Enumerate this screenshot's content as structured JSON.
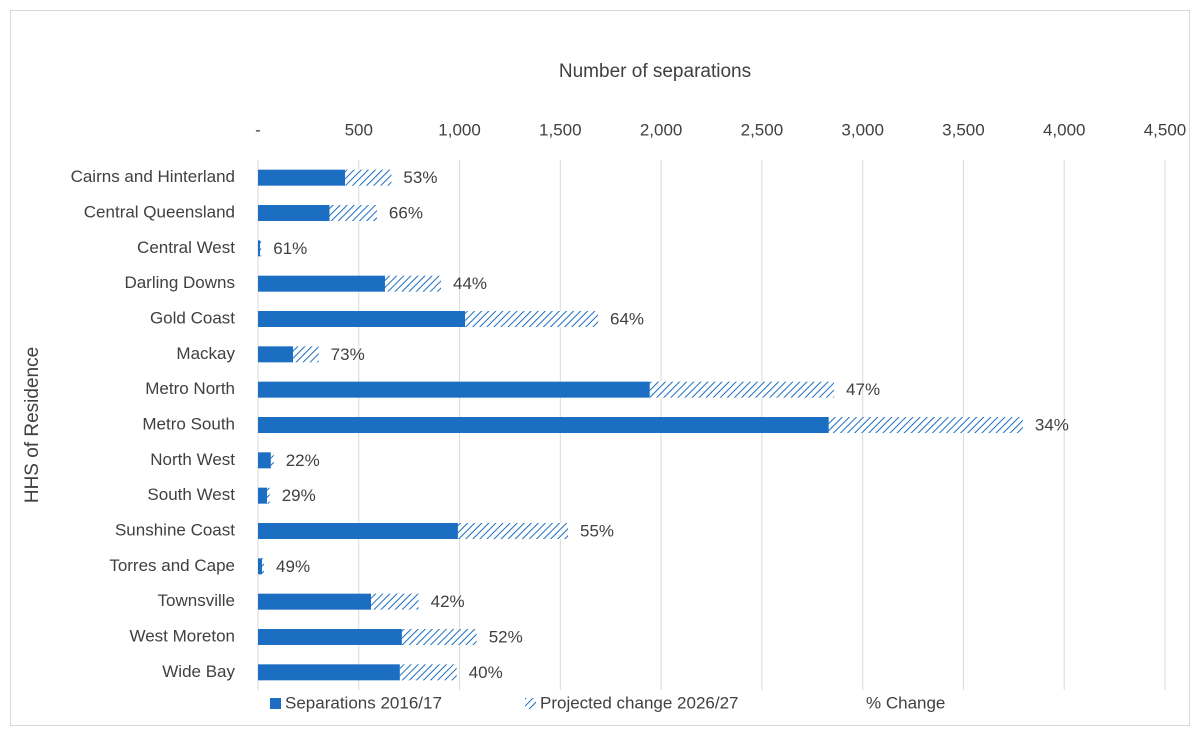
{
  "chart_data": {
    "type": "stacked_barh",
    "x_label": "Number of separations",
    "y_label": "HHS of Residence",
    "categories": [
      "Cairns and Hinterland",
      "Central Queensland",
      "Central West",
      "Darling Downs",
      "Gold Coast",
      "Mackay",
      "Metro North",
      "Metro South",
      "North West",
      "South West",
      "Sunshine Coast",
      "Torres and Cape",
      "Townsville",
      "West Moreton",
      "Wide Bay"
    ],
    "series": [
      {
        "name": "Separations 2016/17",
        "color": "#1b6ec2",
        "fill": "solid",
        "values": [
          432,
          355,
          10,
          630,
          1027,
          174,
          1944,
          2832,
          64,
          45,
          992,
          20,
          561,
          714,
          704
        ]
      },
      {
        "name": "Projected change 2026/27",
        "color": "#1b6ec2",
        "fill": "hatch",
        "values": [
          230,
          235,
          6,
          278,
          660,
          127,
          914,
          963,
          14,
          13,
          546,
          10,
          236,
          371,
          282
        ]
      },
      {
        "name": "% Change",
        "fill": "none",
        "values": [
          53,
          66,
          61,
          44,
          64,
          73,
          47,
          34,
          22,
          29,
          55,
          49,
          42,
          52,
          40
        ],
        "value_labels": [
          "53%",
          "66%",
          "61%",
          "44%",
          "64%",
          "73%",
          "47%",
          "34%",
          "22%",
          "29%",
          "55%",
          "49%",
          "42%",
          "52%",
          "40%"
        ]
      }
    ],
    "xlim": [
      0,
      4500
    ],
    "xticks": [
      {
        "value": 0,
        "label": "-"
      },
      500,
      {
        "value": 1000,
        "label": "1,000"
      },
      {
        "value": 1500,
        "label": "1,500"
      },
      {
        "value": 2000,
        "label": "2,000"
      },
      {
        "value": 2500,
        "label": "2,500"
      },
      {
        "value": 3000,
        "label": "3,000"
      },
      {
        "value": 3500,
        "label": "3,500"
      },
      {
        "value": 4000,
        "label": "4,000"
      },
      {
        "value": 4500,
        "label": "4,500"
      }
    ],
    "grid": true
  }
}
